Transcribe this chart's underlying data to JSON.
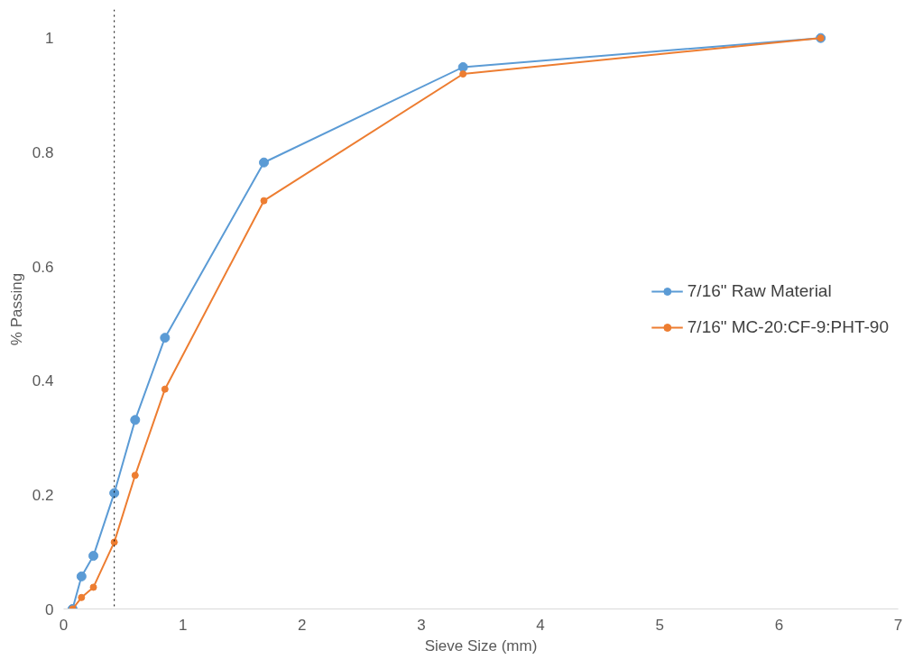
{
  "chart_data": {
    "type": "line",
    "xlabel": "Sieve Size (mm)",
    "ylabel": "% Passing",
    "xlim": [
      0,
      7
    ],
    "xticks": [
      0,
      1,
      2,
      3,
      4,
      5,
      6,
      7
    ],
    "ylim": [
      0,
      1.05
    ],
    "yticks": [
      0,
      0.2,
      0.4,
      0.6,
      0.8,
      1
    ],
    "x": [
      0.075,
      0.15,
      0.25,
      0.425,
      0.6,
      0.85,
      1.68,
      3.35,
      6.35
    ],
    "series": [
      {
        "name": "7/16\" Raw Material",
        "color": "#5b9bd5",
        "values": [
          0,
          0.057,
          0.093,
          0.203,
          0.331,
          0.475,
          0.782,
          0.949,
          1
        ]
      },
      {
        "name": "7/16\" MC-20:CF-9:PHT-90",
        "color": "#ed7d31",
        "values": [
          0,
          0.02,
          0.038,
          0.117,
          0.234,
          0.385,
          0.715,
          0.937,
          1
        ]
      }
    ],
    "ref_lines": [
      {
        "axis": "x",
        "value": 0.425,
        "label": null,
        "color": "#000000",
        "line_style": "dotted"
      }
    ],
    "marker": "circle",
    "line_style": "solid",
    "grid": false,
    "legend": "right"
  }
}
